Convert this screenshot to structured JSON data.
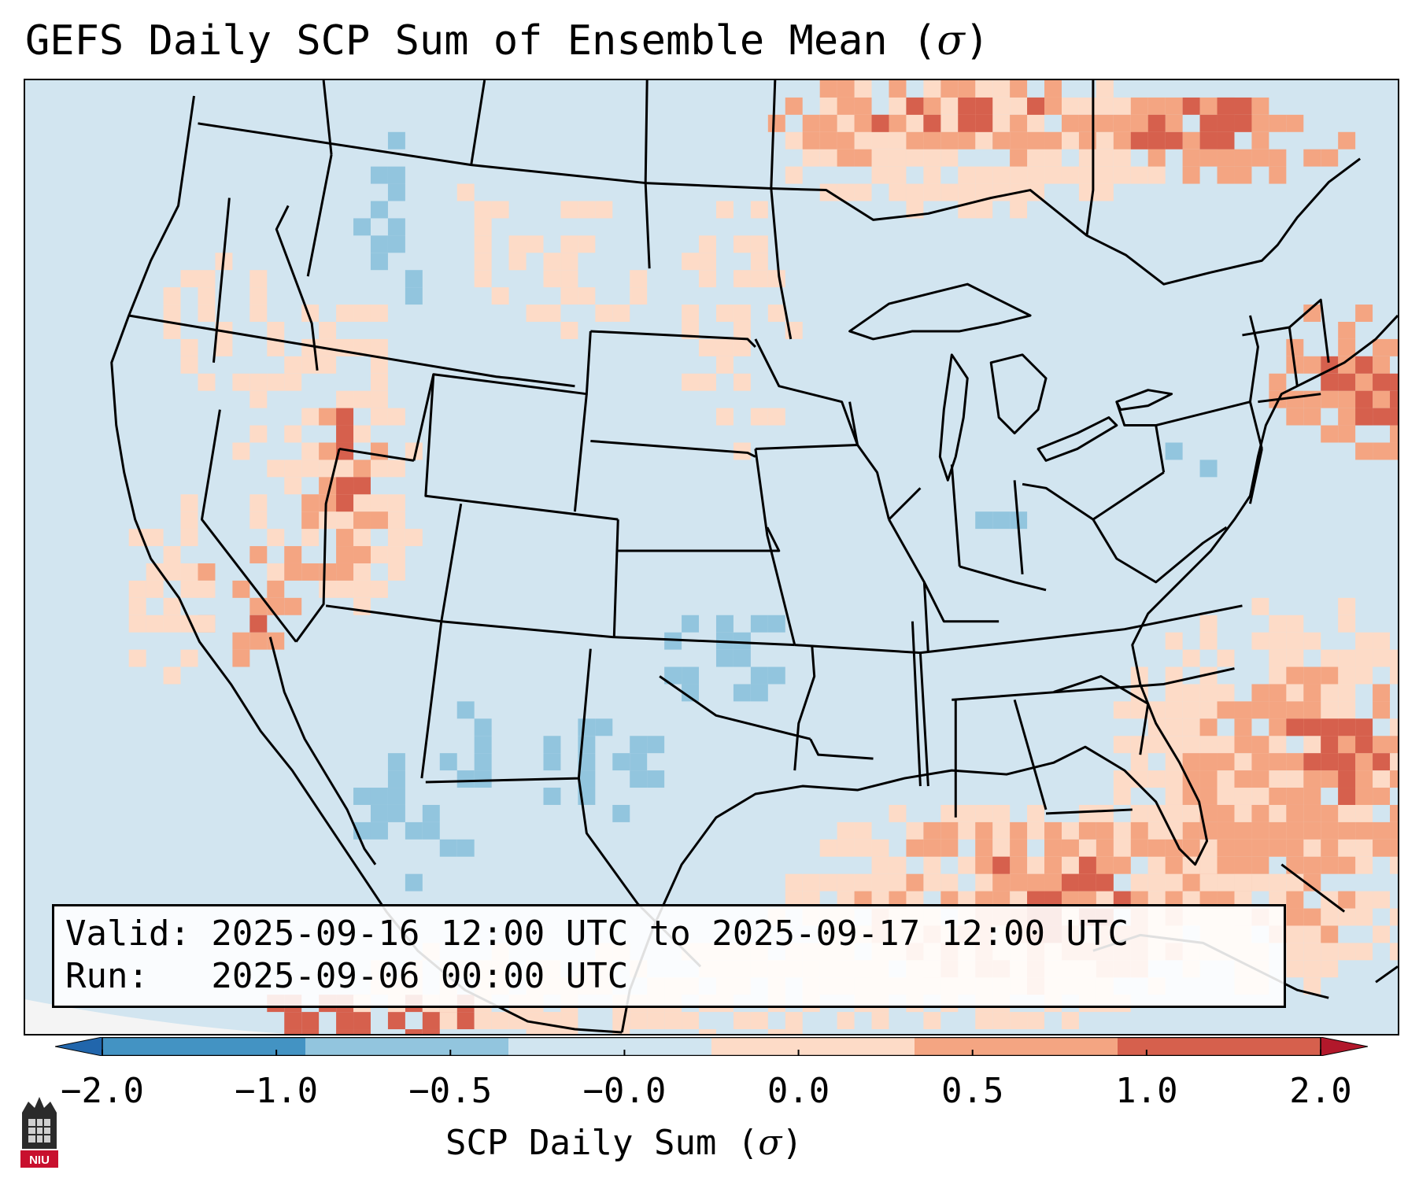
{
  "title": {
    "text": "GEFS Daily SCP Sum of Ensemble Mean (",
    "symbol": "σ",
    "close": ")"
  },
  "info_box": {
    "valid_line": "Valid: 2025-09-16 12:00 UTC to 2025-09-17 12:00 UTC",
    "run_line": "Run:   2025-09-06 00:00 UTC"
  },
  "colorbar": {
    "label_text": "SCP Daily Sum (",
    "label_symbol": "σ",
    "label_close": ")",
    "ticks": [
      "−2.0",
      "−1.0",
      "−0.5",
      "−0.0",
      "0.0",
      "0.5",
      "1.0",
      "2.0"
    ],
    "bins": [
      {
        "from": -2.0,
        "to": -1.0,
        "color": "#4393c3"
      },
      {
        "from": -1.0,
        "to": -0.5,
        "color": "#92c5de"
      },
      {
        "from": -0.5,
        "to": -0.0,
        "color": "#d1e5f0"
      },
      {
        "from": 0.0,
        "to": 0.5,
        "color": "#fddbc7"
      },
      {
        "from": 0.5,
        "to": 1.0,
        "color": "#f4a582"
      },
      {
        "from": 1.0,
        "to": 2.0,
        "color": "#d6604d"
      }
    ],
    "under_color": "#2166ac",
    "over_color": "#b2182b"
  },
  "logo": {
    "text": "NIU"
  },
  "colors": {
    "background_map": "#d2e5f0",
    "ocean_outside": "#f4f4f4",
    "border_lines": "#000000"
  }
}
